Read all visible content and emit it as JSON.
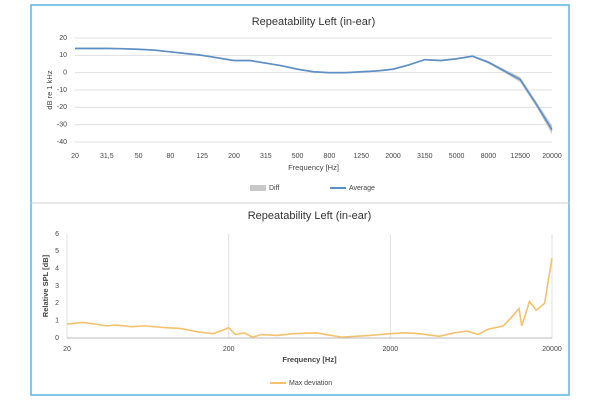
{
  "chart_data": [
    {
      "type": "line",
      "title": "Repeatability Left (in-ear)",
      "xlabel": "Frequency [Hz]",
      "ylabel": "dB re 1 kHz",
      "categories": [
        "20",
        null,
        "31,5",
        null,
        "50",
        null,
        "80",
        null,
        "125",
        null,
        "200",
        null,
        "315",
        null,
        "500",
        null,
        "800",
        null,
        "1250",
        null,
        "2000",
        null,
        "3150",
        null,
        "5000",
        null,
        "8000",
        null,
        "12500",
        null,
        "20000"
      ],
      "series": [
        {
          "name": "Diff",
          "color": "#c8c8c8",
          "kind": "band",
          "values": [
            1,
            1,
            1,
            1,
            1,
            1,
            1,
            1,
            1,
            1,
            1,
            1,
            1,
            1,
            1,
            1,
            1,
            1,
            1,
            1,
            1,
            1,
            1,
            1,
            1,
            1,
            1.5,
            2,
            3,
            3,
            5
          ]
        },
        {
          "name": "Average",
          "color": "#5b8fc7",
          "kind": "line",
          "values": [
            14,
            14,
            14,
            13.8,
            13.5,
            13,
            12,
            11,
            10,
            8.5,
            7,
            7,
            5.5,
            4,
            2,
            0.5,
            0,
            0,
            0.5,
            1,
            2,
            4.5,
            7.5,
            7,
            8,
            9.5,
            6,
            1,
            -4,
            -18,
            -33
          ]
        }
      ],
      "ylim": [
        -40,
        20
      ],
      "yticks": [
        20,
        10,
        0,
        -10,
        -20,
        -30,
        -40
      ],
      "grid": "y"
    },
    {
      "type": "line",
      "title": "Repeatability Left (in-ear)",
      "xlabel": "Frequency [Hz]",
      "ylabel": "Relative SPL [dB]",
      "x": [
        20,
        25,
        30,
        35,
        40,
        50,
        60,
        80,
        100,
        130,
        160,
        190,
        200,
        220,
        250,
        280,
        320,
        400,
        500,
        700,
        800,
        1000,
        1500,
        2000,
        2500,
        3000,
        4000,
        5000,
        6000,
        7000,
        8000,
        10000,
        11000,
        12500,
        13000,
        14500,
        16000,
        18000,
        20000
      ],
      "series": [
        {
          "name": "Max deviation",
          "color": "#f5c16c",
          "kind": "line",
          "values": [
            0.8,
            0.9,
            0.8,
            0.7,
            0.75,
            0.65,
            0.7,
            0.6,
            0.55,
            0.35,
            0.25,
            0.5,
            0.6,
            0.2,
            0.3,
            0.05,
            0.2,
            0.15,
            0.25,
            0.3,
            0.2,
            0.05,
            0.15,
            0.25,
            0.3,
            0.25,
            0.1,
            0.3,
            0.4,
            0.2,
            0.5,
            0.7,
            1.1,
            1.7,
            0.7,
            2.1,
            1.6,
            2.0,
            4.6
          ]
        }
      ],
      "xlim": [
        20,
        20000
      ],
      "xticks": [
        20,
        200,
        2000,
        20000
      ],
      "xscale": "log",
      "ylim": [
        0,
        6
      ],
      "yticks": [
        0,
        1,
        2,
        3,
        4,
        5,
        6
      ],
      "grid": "x"
    }
  ]
}
